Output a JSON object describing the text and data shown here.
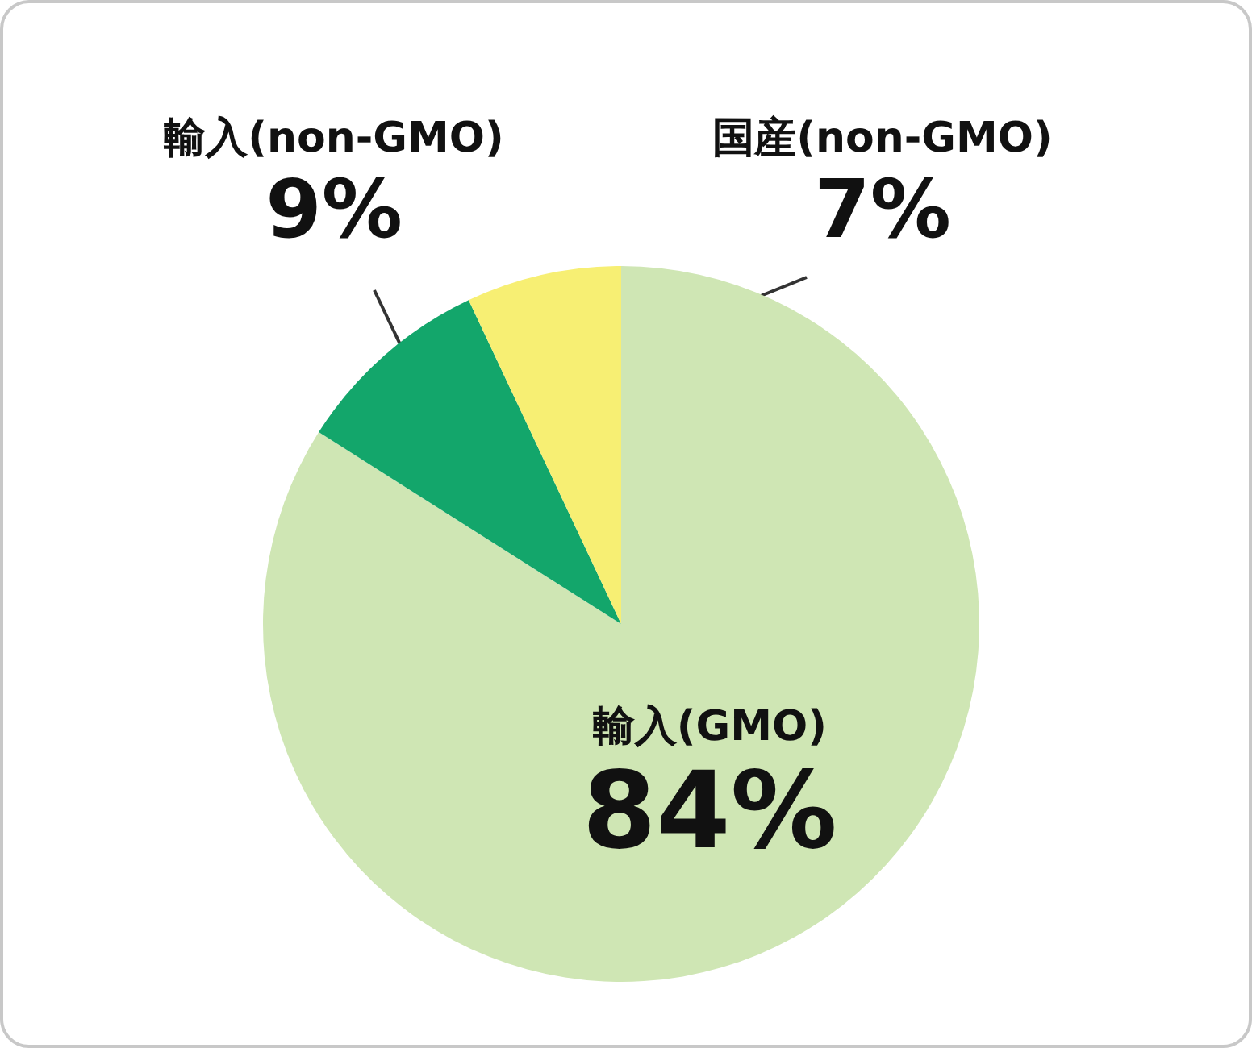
{
  "chart_data": {
    "type": "pie",
    "categories": [
      "輸入(GMO)",
      "輸入(non-GMO)",
      "国産(non-GMO)"
    ],
    "values": [
      84,
      9,
      7
    ],
    "colors": [
      "#cfe6b4",
      "#13a66b",
      "#f7ef73"
    ],
    "value_labels": [
      "84%",
      "9%",
      "7%"
    ],
    "legend": false
  }
}
